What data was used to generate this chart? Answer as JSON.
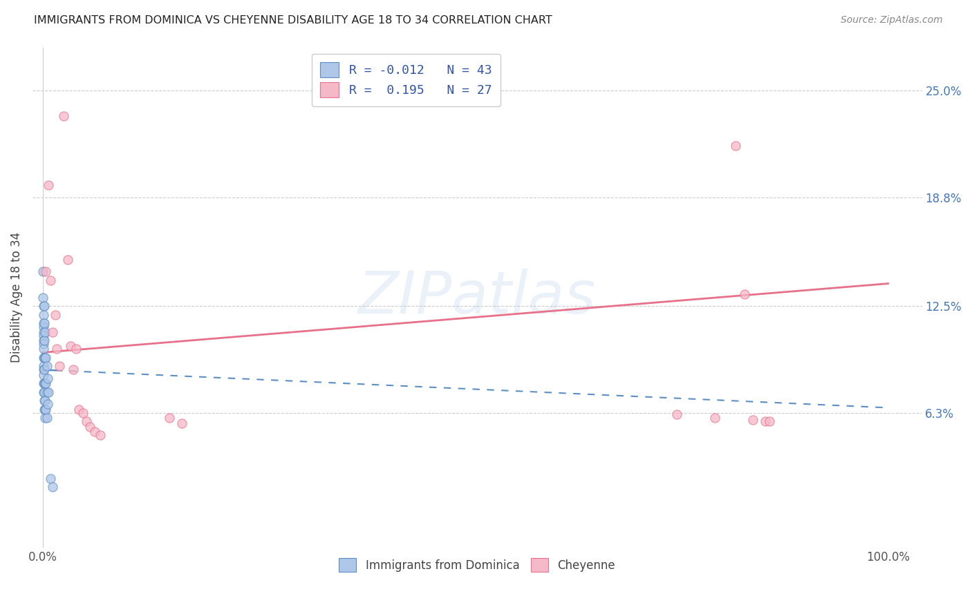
{
  "title": "IMMIGRANTS FROM DOMINICA VS CHEYENNE DISABILITY AGE 18 TO 34 CORRELATION CHART",
  "source": "Source: ZipAtlas.com",
  "ylabel": "Disability Age 18 to 34",
  "legend_label1": "Immigrants from Dominica",
  "legend_label2": "Cheyenne",
  "r1": -0.012,
  "n1": 43,
  "r2": 0.195,
  "n2": 27,
  "color1": "#aec6e8",
  "color2": "#f5b8c8",
  "line1_color": "#5b8ec4",
  "line2_color": "#e8708a",
  "ytick_labels": [
    "6.3%",
    "12.5%",
    "18.8%",
    "25.0%"
  ],
  "ytick_values": [
    0.063,
    0.125,
    0.188,
    0.25
  ],
  "xtick_labels": [
    "0.0%",
    "100.0%"
  ],
  "xtick_values": [
    0.0,
    1.0
  ],
  "xlim": [
    -0.012,
    1.04
  ],
  "ylim": [
    -0.015,
    0.275
  ],
  "dominica_x": [
    0.0,
    0.0,
    0.001,
    0.001,
    0.001,
    0.001,
    0.001,
    0.001,
    0.001,
    0.001,
    0.001,
    0.001,
    0.001,
    0.001,
    0.001,
    0.001,
    0.001,
    0.002,
    0.002,
    0.002,
    0.002,
    0.002,
    0.002,
    0.002,
    0.002,
    0.002,
    0.003,
    0.003,
    0.003,
    0.003,
    0.003,
    0.003,
    0.004,
    0.004,
    0.004,
    0.005,
    0.005,
    0.005,
    0.006,
    0.006,
    0.007,
    0.009,
    0.012
  ],
  "dominica_y": [
    0.145,
    0.13,
    0.125,
    0.12,
    0.115,
    0.113,
    0.11,
    0.108,
    0.105,
    0.103,
    0.1,
    0.095,
    0.09,
    0.088,
    0.085,
    0.08,
    0.075,
    0.125,
    0.115,
    0.105,
    0.095,
    0.088,
    0.08,
    0.075,
    0.07,
    0.065,
    0.11,
    0.095,
    0.08,
    0.07,
    0.065,
    0.06,
    0.095,
    0.08,
    0.065,
    0.09,
    0.075,
    0.06,
    0.083,
    0.068,
    0.075,
    0.025,
    0.02
  ],
  "cheyenne_x": [
    0.004,
    0.007,
    0.009,
    0.012,
    0.015,
    0.017,
    0.02,
    0.025,
    0.03,
    0.033,
    0.036,
    0.04,
    0.043,
    0.048,
    0.052,
    0.056,
    0.062,
    0.068,
    0.15,
    0.165,
    0.75,
    0.795,
    0.82,
    0.83,
    0.84,
    0.855,
    0.86
  ],
  "cheyenne_y": [
    0.145,
    0.195,
    0.14,
    0.11,
    0.12,
    0.1,
    0.09,
    0.235,
    0.152,
    0.102,
    0.088,
    0.1,
    0.065,
    0.063,
    0.058,
    0.055,
    0.052,
    0.05,
    0.06,
    0.057,
    0.062,
    0.06,
    0.218,
    0.132,
    0.059,
    0.058,
    0.058
  ],
  "line1_intercept": 0.088,
  "line1_slope": -0.022,
  "line2_intercept": 0.098,
  "line2_slope": 0.04
}
